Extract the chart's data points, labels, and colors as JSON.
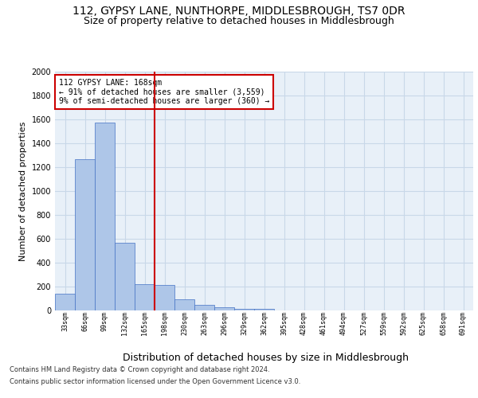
{
  "title_line1": "112, GYPSY LANE, NUNTHORPE, MIDDLESBROUGH, TS7 0DR",
  "title_line2": "Size of property relative to detached houses in Middlesbrough",
  "xlabel": "Distribution of detached houses by size in Middlesbrough",
  "ylabel": "Number of detached properties",
  "footer_line1": "Contains HM Land Registry data © Crown copyright and database right 2024.",
  "footer_line2": "Contains public sector information licensed under the Open Government Licence v3.0.",
  "bin_labels": [
    "33sqm",
    "66sqm",
    "99sqm",
    "132sqm",
    "165sqm",
    "198sqm",
    "230sqm",
    "263sqm",
    "296sqm",
    "329sqm",
    "362sqm",
    "395sqm",
    "428sqm",
    "461sqm",
    "494sqm",
    "527sqm",
    "559sqm",
    "592sqm",
    "625sqm",
    "658sqm",
    "691sqm"
  ],
  "bar_values": [
    140,
    1265,
    1575,
    570,
    220,
    215,
    95,
    50,
    28,
    15,
    12,
    0,
    0,
    0,
    0,
    0,
    0,
    0,
    0,
    0,
    0
  ],
  "bar_color": "#aec6e8",
  "bar_edge_color": "#4472c4",
  "vline_x": 4.5,
  "vline_color": "#cc0000",
  "annotation_text": "112 GYPSY LANE: 168sqm\n← 91% of detached houses are smaller (3,559)\n9% of semi-detached houses are larger (360) →",
  "annotation_box_color": "#cc0000",
  "annotation_bg": "#ffffff",
  "ylim": [
    0,
    2000
  ],
  "yticks": [
    0,
    200,
    400,
    600,
    800,
    1000,
    1200,
    1400,
    1600,
    1800,
    2000
  ],
  "grid_color": "#c8d8e8",
  "background_color": "#e8f0f8",
  "title_fontsize": 10,
  "subtitle_fontsize": 9,
  "footer_fontsize": 6,
  "xlabel_fontsize": 9,
  "ylabel_fontsize": 8,
  "annotation_fontsize": 7,
  "tick_fontsize": 6
}
